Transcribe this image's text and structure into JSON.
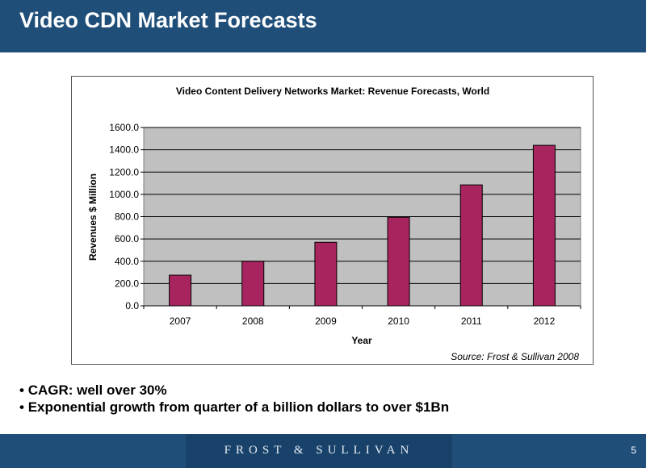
{
  "slide": {
    "title": "Video CDN Market Forecasts",
    "bullets": [
      "CAGR: well over 30%",
      "Exponential growth from quarter of a billion dollars to over $1Bn"
    ],
    "bullet_marker": "•",
    "footer_logo": "FROST & SULLIVAN",
    "page_number": "5"
  },
  "colors": {
    "header": "#1f4e79",
    "bar": "#a8245e",
    "plot_area": "#c0c0c0"
  },
  "chart_data": {
    "type": "bar",
    "title": "Video Content Delivery Networks Market: Revenue Forecasts, World",
    "xlabel": "Year",
    "ylabel": "Revenues $ Million",
    "categories": [
      "2007",
      "2008",
      "2009",
      "2010",
      "2011",
      "2012"
    ],
    "values": [
      275,
      400,
      570,
      795,
      1085,
      1440
    ],
    "ylim": [
      0,
      1600
    ],
    "yticks": [
      "0.0",
      "200.0",
      "400.0",
      "600.0",
      "800.0",
      "1000.0",
      "1200.0",
      "1400.0",
      "1600.0"
    ],
    "grid": true,
    "source": "Source: Frost & Sullivan 2008"
  }
}
